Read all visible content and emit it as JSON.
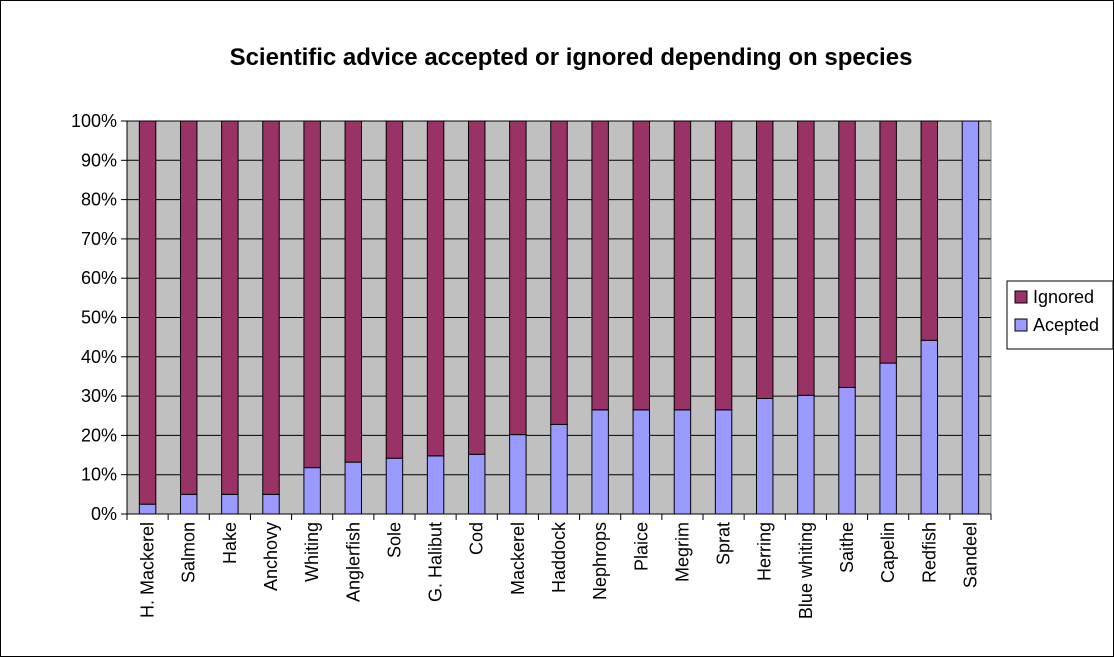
{
  "chart_data": {
    "type": "bar",
    "stacked": true,
    "percent": true,
    "title": "Scientific advice accepted or ignored depending on species",
    "categories": [
      "H. Mackerel",
      "Salmon",
      "Hake",
      "Anchovy",
      "Whiting",
      "Anglerfish",
      "Sole",
      "G. Halibut",
      "Cod",
      "Mackerel",
      "Haddock",
      "Nephrops",
      "Plaice",
      "Megrim",
      "Sprat",
      "Herring",
      "Blue whiting",
      "Saithe",
      "Capelin",
      "Redfish",
      "Sandeel"
    ],
    "series": [
      {
        "name": "Acepted",
        "color": "#9999FF",
        "values": [
          2.5,
          5,
          5,
          5,
          11.8,
          13.2,
          14.2,
          14.8,
          15.2,
          20.2,
          22.8,
          26.5,
          26.5,
          26.5,
          26.5,
          29.4,
          30.2,
          32.2,
          38.4,
          44.2,
          100
        ]
      },
      {
        "name": "Ignored",
        "color": "#993366",
        "values": [
          97.5,
          95,
          95,
          95,
          88.2,
          86.8,
          85.8,
          85.2,
          84.8,
          79.8,
          77.2,
          73.5,
          73.5,
          73.5,
          73.5,
          70.6,
          69.8,
          67.8,
          61.6,
          55.8,
          0
        ]
      }
    ],
    "ylim": [
      0,
      100
    ],
    "yticks": [
      "0%",
      "10%",
      "20%",
      "30%",
      "40%",
      "50%",
      "60%",
      "70%",
      "80%",
      "90%",
      "100%"
    ],
    "legend": {
      "position": "right",
      "entries": [
        "Ignored",
        "Acepted"
      ]
    },
    "grid": true,
    "plot_background": "#C0C0C0"
  }
}
